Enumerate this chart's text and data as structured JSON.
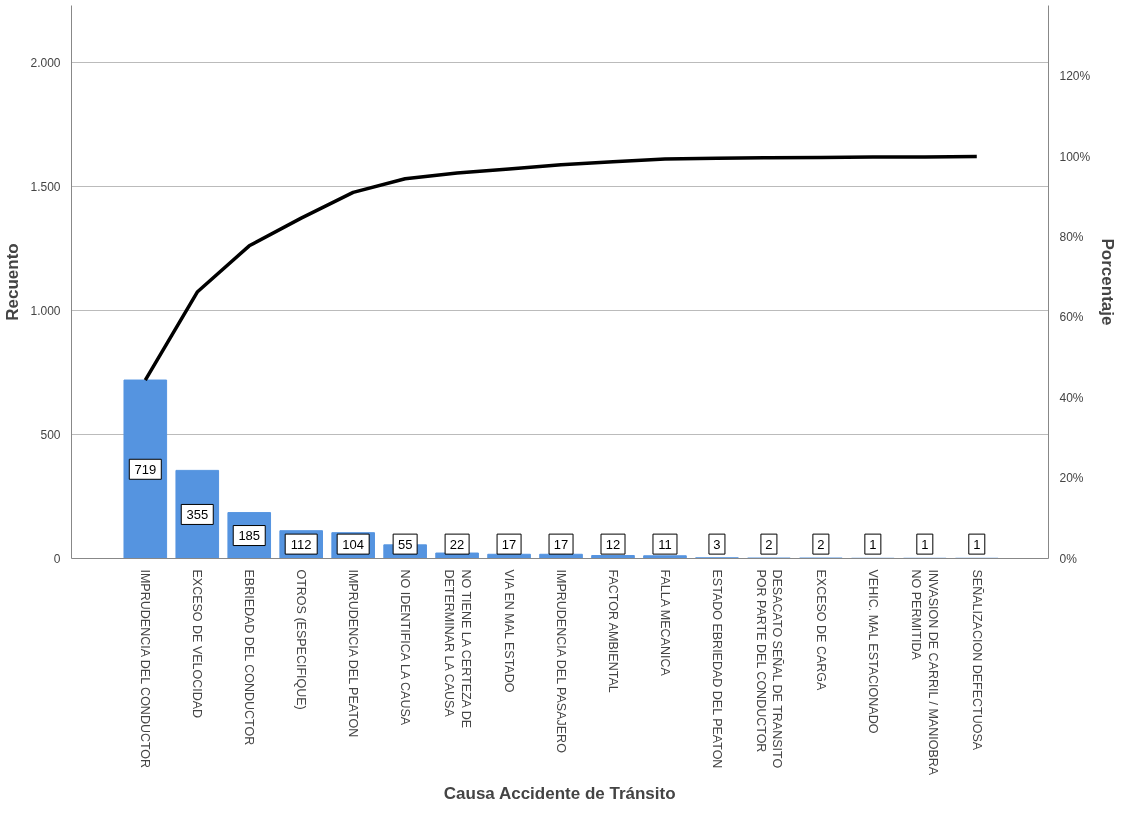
{
  "chart_data": {
    "type": "bar",
    "xlabel": "Causa Accidente de Tránsito",
    "ylabel": "Recuento",
    "y2label": "Porcentaje",
    "categories": [
      "IMPRUDENCIA DEL CONDUCTOR",
      "EXCESO DE VELOCIDAD",
      "EBRIEDAD DEL CONDUCTOR",
      "OTROS  (ESPECIFIQUE)",
      "IMPRUDENCIA DEL PEATON",
      "NO IDENTIFICA LA CAUSA",
      "NO TIENE LA CERTEZA DE\nDETERMINAR LA CAUSA",
      "VIA EN MAL ESTADO",
      "IMPRUDENCIA DEL PASAJERO",
      "FACTOR AMBIENTAL",
      "FALLA MECANICA",
      "ESTADO EBRIEDAD DEL PEATON",
      "DESACATO SEÑAL DE TRANSITO\nPOR PARTE DEL CONDUCTOR",
      "EXCESO DE CARGA",
      "VEHIC. MAL ESTACIONADO",
      "INVASION DE CARRIL / MANIOBRA\nNO PERMITIDA",
      "SEÑALIZACION DEFECTUOSA"
    ],
    "series": [
      {
        "color": "#5594e0",
        "values": [
          719,
          355,
          185,
          112,
          104,
          55,
          22,
          17,
          17,
          12,
          11,
          3,
          2,
          2,
          1,
          1,
          1
        ],
        "value_labels": [
          "719",
          "355",
          "185",
          "112",
          "104",
          "55",
          "22",
          "17",
          "17",
          "12",
          "11",
          "3",
          "2",
          "2",
          "1",
          "1",
          "1"
        ]
      },
      {
        "type": "line",
        "axis": "y2",
        "color": "#000000",
        "values": [
          44.4,
          66.3,
          77.8,
          84.7,
          91.1,
          94.5,
          95.9,
          96.9,
          98.0,
          98.7,
          99.4,
          99.6,
          99.7,
          99.8,
          99.9,
          99.9,
          100
        ]
      }
    ],
    "ylim": [
      0,
      2228
    ],
    "yticks": [
      0,
      500,
      {
        "value": 1000,
        "label": "1.000"
      },
      {
        "value": 1500,
        "label": "1.500"
      },
      {
        "value": 2000,
        "label": "2.000"
      }
    ],
    "y2lim": [
      0,
      137.6
    ],
    "y2ticks": [
      {
        "value": 0,
        "label": "0%"
      },
      {
        "value": 20,
        "label": "20%"
      },
      {
        "value": 40,
        "label": "40%"
      },
      {
        "value": 60,
        "label": "60%"
      },
      {
        "value": 80,
        "label": "80%"
      },
      {
        "value": 100,
        "label": "100%"
      },
      {
        "value": 120,
        "label": "120%"
      }
    ],
    "grid": "y",
    "marker": "none",
    "line_style": "solid"
  }
}
